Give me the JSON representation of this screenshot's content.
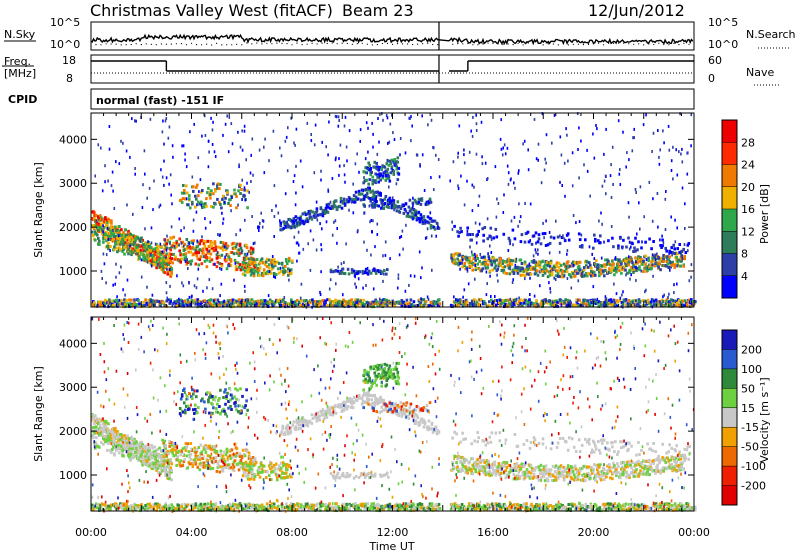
{
  "header": {
    "title": "Christmas Valley West (fitACF)",
    "beam": "Beam 23",
    "date": "12/Jun/2012"
  },
  "panels": {
    "nsky": {
      "label": "N.Sky",
      "tick_hi": "10^5",
      "tick_lo": "10^0"
    },
    "nsearch": {
      "label": "N.Search",
      "tick_hi": "10^5",
      "tick_lo": "10^0"
    },
    "freq": {
      "label_1": "Freq.",
      "label_2": "[MHz]",
      "tick_hi": "18",
      "tick_lo": "8"
    },
    "nave": {
      "label": "Nave",
      "tick_hi": "60",
      "tick_lo": "0"
    },
    "cpid": {
      "label": "CPID",
      "value": "normal (fast) -151 IF"
    }
  },
  "chart_data": [
    {
      "type": "heatmap",
      "name": "power",
      "ylabel": "Slant Range [km]",
      "y_ticks": [
        "1000",
        "2000",
        "3000",
        "4000"
      ],
      "y_tick_values": [
        1000,
        2000,
        3000,
        4000
      ],
      "ylim": [
        180,
        4600
      ],
      "xlim_hours": [
        0,
        24
      ],
      "colorbar": {
        "label": "Power [dB]",
        "ticks": [
          "4",
          "8",
          "12",
          "16",
          "20",
          "24",
          "28"
        ],
        "colors": [
          "#0000ff",
          "#2c3ea8",
          "#2e7d5a",
          "#2ea84a",
          "#f0b000",
          "#f07a00",
          "#ff2a00",
          "#ee0000"
        ]
      }
    },
    {
      "type": "heatmap",
      "name": "velocity",
      "ylabel": "Slant Range [km]",
      "y_ticks": [
        "1000",
        "2000",
        "3000",
        "4000"
      ],
      "y_tick_values": [
        1000,
        2000,
        3000,
        4000
      ],
      "ylim": [
        180,
        4600
      ],
      "xlim_hours": [
        0,
        24
      ],
      "xlabel": "Time UT",
      "x_ticks": [
        "00:00",
        "04:00",
        "08:00",
        "12:00",
        "16:00",
        "20:00",
        "00:00"
      ],
      "colorbar": {
        "label": "Velocity [m s⁻¹]",
        "ticks": [
          "200",
          "100",
          "50",
          "15",
          "-15",
          "-50",
          "-100",
          "-200"
        ],
        "colors": [
          "#1a1ab8",
          "#2a5ad0",
          "#2e8a3a",
          "#6cd040",
          "#c8c8c8",
          "#f0a000",
          "#ee6a00",
          "#ee2000",
          "#e00000"
        ]
      }
    }
  ]
}
